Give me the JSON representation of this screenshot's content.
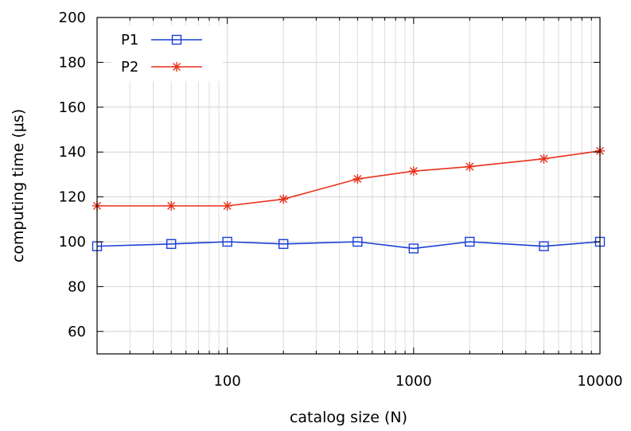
{
  "chart_data": {
    "type": "line",
    "xlabel": "catalog size (N)",
    "ylabel": "computing time (μs)",
    "x_scale": "log",
    "xlim": [
      20,
      10000
    ],
    "ylim": [
      50,
      200
    ],
    "x_ticks": [
      {
        "value": 100,
        "label": "100"
      },
      {
        "value": 1000,
        "label": "1000"
      },
      {
        "value": 10000,
        "label": "10000"
      }
    ],
    "y_ticks": [
      {
        "value": 60,
        "label": "60"
      },
      {
        "value": 80,
        "label": "80"
      },
      {
        "value": 100,
        "label": "100"
      },
      {
        "value": 120,
        "label": "120"
      },
      {
        "value": 140,
        "label": "140"
      },
      {
        "value": 160,
        "label": "160"
      },
      {
        "value": 180,
        "label": "180"
      },
      {
        "value": 200,
        "label": "200"
      }
    ],
    "grid": true,
    "legend": "top-left",
    "x": [
      20,
      50,
      100,
      200,
      500,
      1000,
      2000,
      5000,
      10000
    ],
    "series": [
      {
        "name": "P1",
        "color": "#1a3fd6",
        "marker": "square",
        "values": [
          98,
          99,
          100,
          99,
          100,
          97,
          100,
          98,
          100
        ]
      },
      {
        "name": "P2",
        "color": "#e8321c",
        "marker": "star",
        "values": [
          116,
          116,
          116,
          119,
          128,
          131.5,
          133.5,
          137,
          140.5
        ]
      }
    ]
  }
}
